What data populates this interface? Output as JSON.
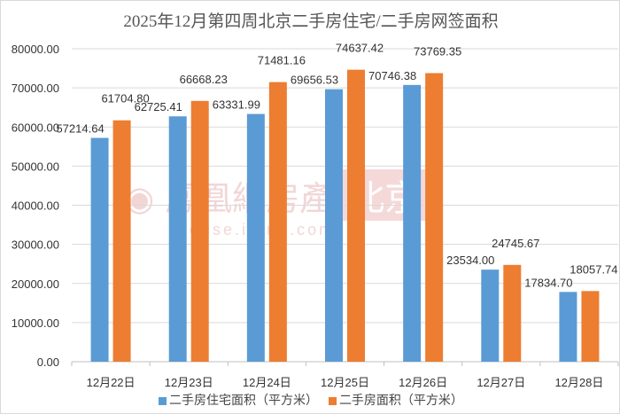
{
  "chart_data": {
    "type": "bar",
    "title": "2025年12月第四周北京二手房住宅/二手房网签面积",
    "categories": [
      "12月22日",
      "12月23日",
      "12月24日",
      "12月25日",
      "12月26日",
      "12月27日",
      "12月28日"
    ],
    "series": [
      {
        "name": "二手房住宅面积（平方米）",
        "color": "#5b9bd5",
        "values": [
          57214.64,
          62725.41,
          63331.99,
          69656.53,
          70746.38,
          23534.0,
          17834.7
        ]
      },
      {
        "name": "二手房面积（平方米）",
        "color": "#ed7d31",
        "values": [
          61704.8,
          66668.23,
          71481.16,
          74637.42,
          73769.35,
          24745.67,
          18057.74
        ]
      }
    ],
    "yticks": [
      "0.00",
      "10000.00",
      "20000.00",
      "30000.00",
      "40000.00",
      "50000.00",
      "60000.00",
      "70000.00",
      "80000.00"
    ],
    "ylim": [
      0,
      80000
    ],
    "grid": true,
    "legend": "bottom",
    "xlabel": "",
    "ylabel": ""
  },
  "watermark": {
    "name": "鳳凰網房產",
    "city": "北京",
    "url": "house.ifeng.com"
  }
}
